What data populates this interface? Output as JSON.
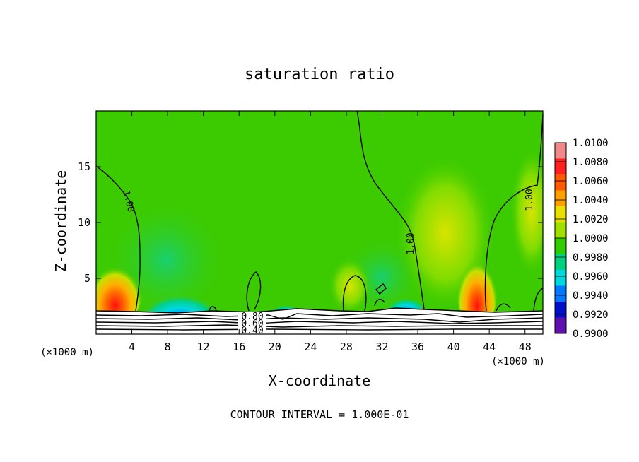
{
  "chart_data": {
    "type": "heatmap",
    "title": "saturation ratio",
    "xlabel": "X-coordinate",
    "ylabel": "Z-coordinate",
    "x_unit": "(×1000 m)",
    "z_unit": "(×1000 m)",
    "xlim": [
      0,
      50
    ],
    "ylim": [
      0,
      20
    ],
    "x_ticks": [
      "4",
      "8",
      "12",
      "16",
      "20",
      "24",
      "28",
      "32",
      "36",
      "40",
      "44",
      "48"
    ],
    "y_ticks": [
      "5",
      "10",
      "15"
    ],
    "colorbar_labels": [
      "1.0100",
      "1.0080",
      "1.0060",
      "1.0040",
      "1.0020",
      "1.0000",
      "0.9980",
      "0.9960",
      "0.9940",
      "0.9920",
      "0.9900"
    ],
    "colorbar_colors": [
      "#f08a8a",
      "#ff2020",
      "#ff5a00",
      "#ffa000",
      "#e8e000",
      "#a0e000",
      "#30cc00",
      "#00d080",
      "#00d8e0",
      "#0078ff",
      "#0010c8",
      "#6010b0"
    ],
    "contour_labels": [
      "1.00",
      "1.00",
      "1.00",
      "0.80",
      "0.60",
      "0.40"
    ],
    "footer": "CONTOUR INTERVAL = 1.000E-01"
  }
}
